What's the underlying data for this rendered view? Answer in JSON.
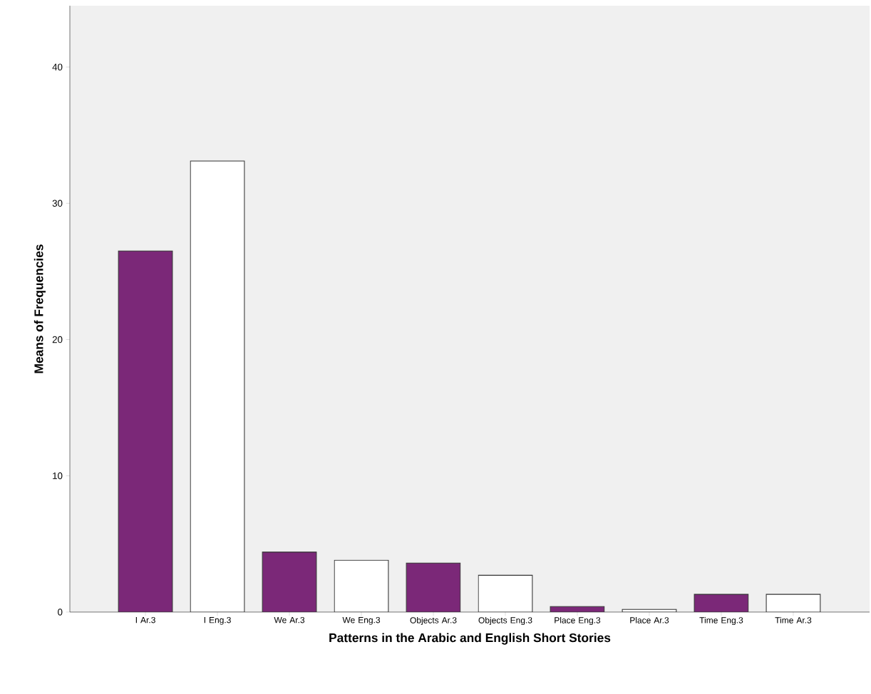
{
  "chart_data": {
    "type": "bar",
    "xlabel": "Patterns in the Arabic and English Short Stories",
    "ylabel": "Means of Frequencies",
    "categories": [
      "I Ar.3",
      "I Eng.3",
      "We Ar.3",
      "We Eng.3",
      "Objects Ar.3",
      "Objects Eng.3",
      "Place Eng.3",
      "Place Ar.3",
      "Time Eng.3",
      "Time Ar.3"
    ],
    "values": [
      26.5,
      33.1,
      4.4,
      3.8,
      3.6,
      2.7,
      0.4,
      0.2,
      1.3,
      1.3
    ],
    "colors": [
      "#7b2878",
      "#ffffff",
      "#7b2878",
      "#ffffff",
      "#7b2878",
      "#ffffff",
      "#7b2878",
      "#ffffff",
      "#7b2878",
      "#ffffff"
    ],
    "ylim": [
      0,
      44.5
    ],
    "yticks": [
      0,
      10,
      20,
      30,
      40
    ]
  }
}
